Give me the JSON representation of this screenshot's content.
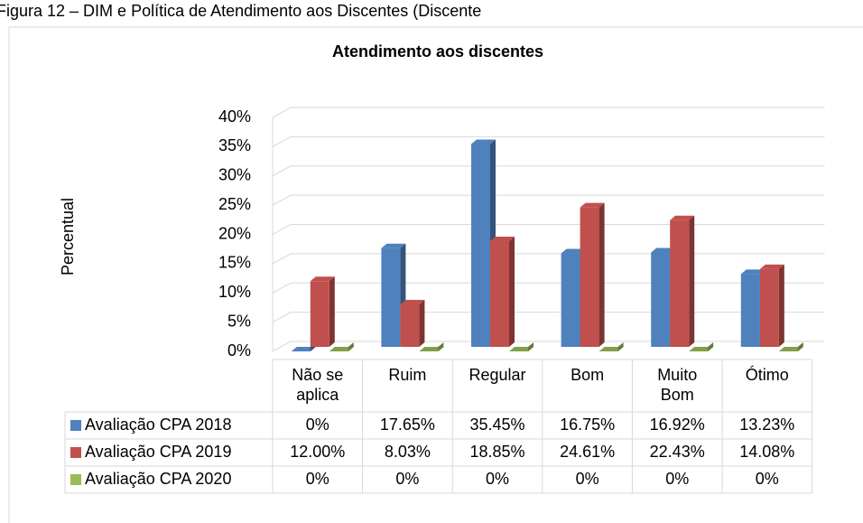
{
  "caption": "Figura 12 – DIM e Política de Atendimento aos Discentes (Discente",
  "chart_data": {
    "type": "bar3d",
    "title": "Atendimento aos discentes",
    "y_label": "Percentual",
    "categories": [
      "Não se aplica",
      "Ruim",
      "Regular",
      "Bom",
      "Muito Bom",
      "Ótimo"
    ],
    "series": [
      {
        "name": "Avaliação CPA 2018",
        "color": "#4f81bd",
        "values": [
          0,
          17.65,
          35.45,
          16.75,
          16.92,
          13.23
        ],
        "value_labels": [
          "0%",
          "17.65%",
          "35.45%",
          "16.75%",
          "16.92%",
          "13.23%"
        ]
      },
      {
        "name": "Avaliação CPA 2019",
        "color": "#c0504d",
        "values": [
          12,
          8.03,
          18.85,
          24.61,
          22.43,
          14.08
        ],
        "value_labels": [
          "12.00%",
          "8.03%",
          "18.85%",
          "24.61%",
          "22.43%",
          "14.08%"
        ]
      },
      {
        "name": "Avaliação CPA 2020",
        "color": "#9bbb59",
        "values": [
          0,
          0,
          0,
          0,
          0,
          0
        ],
        "value_labels": [
          "0%",
          "0%",
          "0%",
          "0%",
          "0%",
          "0%"
        ]
      }
    ],
    "ylim": [
      0,
      40
    ],
    "yticks": [
      {
        "value": 0,
        "label": "0%"
      },
      {
        "value": 5,
        "label": "5%"
      },
      {
        "value": 10,
        "label": "10%"
      },
      {
        "value": 15,
        "label": "15%"
      },
      {
        "value": 20,
        "label": "20%"
      },
      {
        "value": 25,
        "label": "25%"
      },
      {
        "value": 30,
        "label": "30%"
      },
      {
        "value": 35,
        "label": "35%"
      },
      {
        "value": 40,
        "label": "40%"
      }
    ],
    "grid": true
  }
}
